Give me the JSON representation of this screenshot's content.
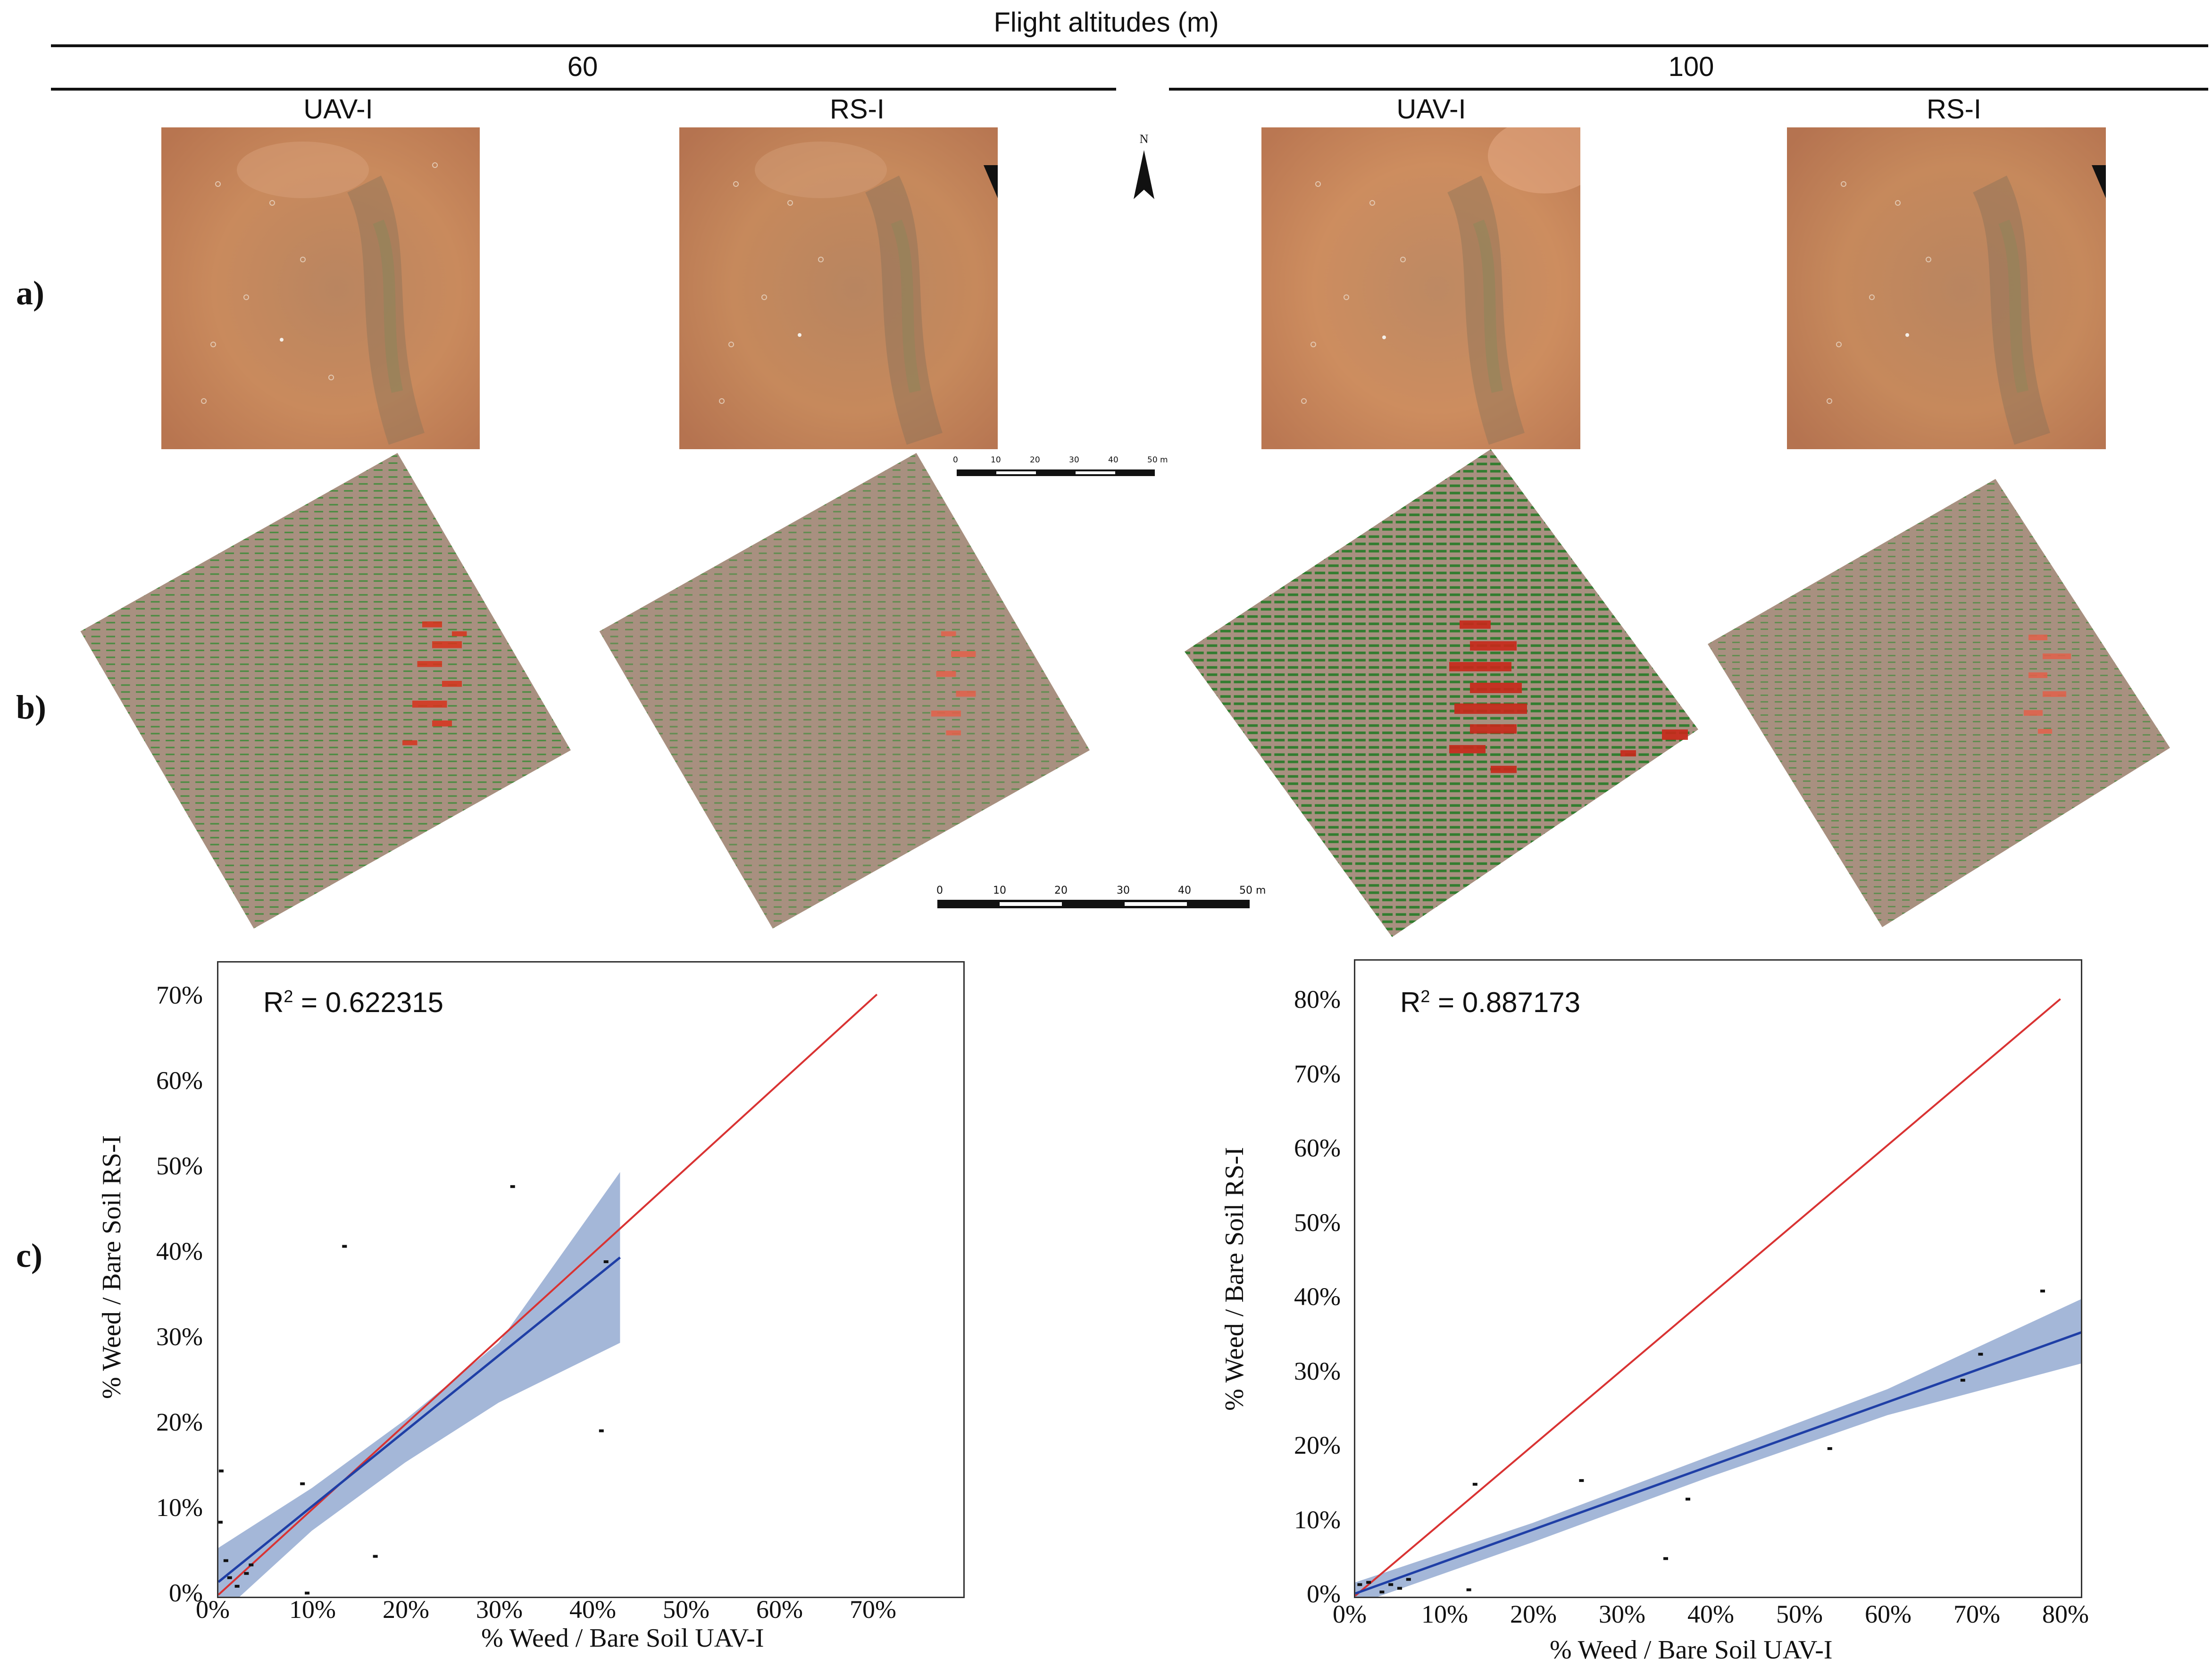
{
  "figure": {
    "top_header": "Flight altitudes (m)",
    "altitudes": [
      "60",
      "100"
    ],
    "columns": [
      "UAV-I",
      "RS-I",
      "UAV-I",
      "RS-I"
    ],
    "row_labels": [
      "a)",
      "b)",
      "c)"
    ],
    "north_label": "N",
    "scale_bar_small": [
      "0",
      "10",
      "20",
      "30",
      "40",
      "50 m"
    ],
    "scale_bar_large": [
      "0",
      "10",
      "20",
      "30",
      "40",
      "50 m"
    ],
    "colors": {
      "soil_photo": "#c4865c",
      "map_background": "#a89080",
      "crop_green": "#1f8a26",
      "weed_red": "#d8331c",
      "regression_line": "#1f3fa6",
      "confidence_band": "#9fb3d6",
      "identity_line": "#d93333"
    }
  },
  "chart_data": [
    {
      "type": "scatter",
      "title": "R² = 0.622315",
      "r2_prefix": "R",
      "r2_sup": "2",
      "r2_value": " = 0.622315",
      "xlabel": "% Weed / Bare Soil UAV-I",
      "ylabel": "% Weed / Bare Soil RS-I",
      "xlim": [
        0,
        75
      ],
      "ylim": [
        0,
        73
      ],
      "x_ticks": [
        "0%",
        "10%",
        "20%",
        "30%",
        "40%",
        "50%",
        "60%",
        "70%"
      ],
      "y_ticks": [
        "0%",
        "10%",
        "20%",
        "30%",
        "40%",
        "50%",
        "60%",
        "70%"
      ],
      "x_tick_values": [
        0,
        10,
        20,
        30,
        40,
        50,
        60,
        70
      ],
      "y_tick_values": [
        0,
        10,
        20,
        30,
        40,
        50,
        60,
        70
      ],
      "points": [
        [
          0.3,
          14.5
        ],
        [
          0.2,
          8.5
        ],
        [
          0.8,
          4
        ],
        [
          1.2,
          2
        ],
        [
          2,
          1
        ],
        [
          3,
          2.5
        ],
        [
          3.5,
          3.5
        ],
        [
          9,
          13
        ],
        [
          9.5,
          0.2
        ],
        [
          13.5,
          40.8
        ],
        [
          16.8,
          4.5
        ],
        [
          31.5,
          47.8
        ],
        [
          41,
          19.2
        ],
        [
          41.5,
          39
        ]
      ],
      "regression": {
        "x": [
          0,
          43
        ],
        "y": [
          1.5,
          39.5
        ]
      },
      "band_upper": [
        [
          0,
          5.5
        ],
        [
          10,
          12.5
        ],
        [
          20,
          20.5
        ],
        [
          30,
          29.5
        ],
        [
          43,
          49.5
        ]
      ],
      "band_lower": [
        [
          0,
          -2.5
        ],
        [
          10,
          7.5
        ],
        [
          20,
          15.5
        ],
        [
          30,
          22.5
        ],
        [
          43,
          29.5
        ]
      ],
      "identity": {
        "x": [
          0,
          70.5
        ],
        "y": [
          0,
          70.3
        ]
      },
      "grid": false
    },
    {
      "type": "scatter",
      "title": "R² = 0.887173",
      "r2_prefix": "R",
      "r2_sup": "2",
      "r2_value": " = 0.887173",
      "xlabel": "% Weed / Bare Soil UAV-I",
      "ylabel": "% Weed / Bare Soil RS-I",
      "xlim": [
        0,
        84
      ],
      "ylim": [
        0,
        83
      ],
      "x_ticks": [
        "0%",
        "10%",
        "20%",
        "30%",
        "40%",
        "50%",
        "60%",
        "70%",
        "80%"
      ],
      "y_ticks": [
        "0%",
        "10%",
        "20%",
        "30%",
        "40%",
        "50%",
        "60%",
        "70%",
        "80%"
      ],
      "x_tick_values": [
        0,
        10,
        20,
        30,
        40,
        50,
        60,
        70,
        80
      ],
      "y_tick_values": [
        0,
        10,
        20,
        30,
        40,
        50,
        60,
        70,
        80
      ],
      "points": [
        [
          0.5,
          1.5
        ],
        [
          1.5,
          1.8
        ],
        [
          3,
          0.5
        ],
        [
          4,
          1.5
        ],
        [
          5,
          1
        ],
        [
          6,
          2.2
        ],
        [
          12.8,
          0.8
        ],
        [
          13.5,
          15
        ],
        [
          25.5,
          15.5
        ],
        [
          35,
          5
        ],
        [
          37.5,
          13
        ],
        [
          53.5,
          19.8
        ],
        [
          68.5,
          29
        ],
        [
          70.5,
          32.5
        ],
        [
          77.5,
          41
        ]
      ],
      "regression": {
        "x": [
          0,
          82
        ],
        "y": [
          0.3,
          35.5
        ]
      },
      "band_upper": [
        [
          0,
          1.8
        ],
        [
          20,
          9.8
        ],
        [
          40,
          18.8
        ],
        [
          60,
          27.8
        ],
        [
          82,
          40
        ]
      ],
      "band_lower": [
        [
          0,
          -1.2
        ],
        [
          20,
          7.2
        ],
        [
          40,
          16.0
        ],
        [
          60,
          24.3
        ],
        [
          82,
          31.3
        ]
      ],
      "identity": {
        "x": [
          0,
          79.5
        ],
        "y": [
          0,
          80.3
        ]
      },
      "grid": false
    }
  ]
}
